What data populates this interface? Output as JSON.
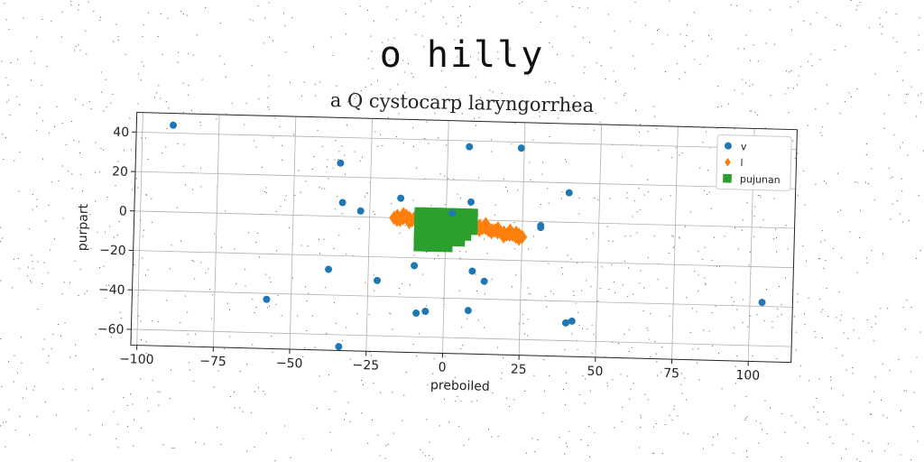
{
  "title": "o hilly",
  "subtitle": "a Q cystocarp laryngorrhea",
  "chart_data": {
    "type": "scatter",
    "xlabel": "preboiled",
    "ylabel": "purpart",
    "xlim": [
      -102,
      114
    ],
    "ylim": [
      -68,
      50
    ],
    "xticks": [
      -100,
      -75,
      -50,
      -25,
      0,
      25,
      50,
      75,
      100
    ],
    "yticks": [
      -60,
      -40,
      -20,
      0,
      20,
      40
    ],
    "xtick_labels": [
      "−100",
      "−75",
      "−50",
      "−25",
      "0",
      "25",
      "50",
      "75",
      "100"
    ],
    "ytick_labels": [
      "−60",
      "−40",
      "−20",
      "0",
      "20",
      "40"
    ],
    "grid": true,
    "legend_position": "top-right",
    "series": [
      {
        "name": "v",
        "color": "#1f77b4",
        "marker": "circle",
        "points": [
          [
            -90,
            44
          ],
          [
            -35,
            27
          ],
          [
            -34,
            7
          ],
          [
            -28,
            3
          ],
          [
            -15,
            10
          ],
          [
            -38,
            -27
          ],
          [
            -58,
            -43
          ],
          [
            -22,
            -32
          ],
          [
            -10,
            -24
          ],
          [
            -9,
            -48
          ],
          [
            -6,
            -47
          ],
          [
            -34,
            -66
          ],
          [
            7,
            37
          ],
          [
            24,
            37
          ],
          [
            8,
            9
          ],
          [
            2,
            3
          ],
          [
            9,
            -26
          ],
          [
            13,
            -31
          ],
          [
            8,
            -46
          ],
          [
            31,
            -2
          ],
          [
            31,
            -3
          ],
          [
            40,
            15
          ],
          [
            40,
            -51
          ],
          [
            42,
            -50
          ],
          [
            104,
            -38
          ]
        ]
      },
      {
        "name": "l",
        "color": "#ff7f0e",
        "marker": "diamond",
        "points": [
          [
            -17,
            0
          ],
          [
            -16,
            1
          ],
          [
            -15,
            -1
          ],
          [
            -14,
            0
          ],
          [
            -13,
            1
          ],
          [
            -12,
            0
          ],
          [
            -11,
            -1
          ],
          [
            -10,
            0
          ],
          [
            -9,
            1
          ],
          [
            -8,
            0
          ],
          [
            -7,
            -1
          ],
          [
            -6,
            0
          ],
          [
            -5,
            0
          ],
          [
            -4,
            -1
          ],
          [
            -3,
            0
          ],
          [
            -2,
            -1
          ],
          [
            -1,
            0
          ],
          [
            0,
            -1
          ],
          [
            1,
            -1
          ],
          [
            2,
            -2
          ],
          [
            3,
            -1
          ],
          [
            4,
            -2
          ],
          [
            5,
            -2
          ],
          [
            6,
            -3
          ],
          [
            7,
            -2
          ],
          [
            8,
            -3
          ],
          [
            9,
            -3
          ],
          [
            10,
            -4
          ],
          [
            11,
            -3
          ],
          [
            12,
            -4
          ],
          [
            13,
            -4
          ],
          [
            14,
            -5
          ],
          [
            15,
            -5
          ],
          [
            16,
            -5
          ],
          [
            17,
            -6
          ],
          [
            18,
            -6
          ],
          [
            19,
            -6
          ],
          [
            20,
            -7
          ],
          [
            21,
            -7
          ],
          [
            22,
            -7
          ],
          [
            23,
            -8
          ],
          [
            24,
            -7
          ],
          [
            25,
            -8
          ],
          [
            -16,
            -1
          ],
          [
            -14,
            2
          ],
          [
            -12,
            -2
          ],
          [
            -10,
            1
          ],
          [
            -8,
            -2
          ],
          [
            -6,
            2
          ],
          [
            -4,
            1
          ],
          [
            -2,
            1
          ],
          [
            1,
            1
          ],
          [
            3,
            0
          ],
          [
            5,
            -1
          ],
          [
            7,
            -4
          ],
          [
            9,
            -1
          ],
          [
            11,
            -5
          ],
          [
            13,
            -2
          ],
          [
            15,
            -6
          ],
          [
            17,
            -4
          ],
          [
            19,
            -8
          ],
          [
            21,
            -5
          ],
          [
            23,
            -6
          ],
          [
            24,
            -9
          ]
        ]
      },
      {
        "name": "pujunan",
        "color": "#2ca02c",
        "marker": "square",
        "points": [
          [
            -8,
            2
          ],
          [
            -6,
            2
          ],
          [
            -4,
            2
          ],
          [
            -2,
            2
          ],
          [
            0,
            2
          ],
          [
            2,
            2
          ],
          [
            4,
            2
          ],
          [
            6,
            2
          ],
          [
            8,
            2
          ],
          [
            -8,
            -1
          ],
          [
            -6,
            -1
          ],
          [
            -4,
            -1
          ],
          [
            -2,
            -1
          ],
          [
            0,
            -1
          ],
          [
            2,
            -1
          ],
          [
            4,
            -1
          ],
          [
            6,
            -1
          ],
          [
            8,
            -1
          ],
          [
            -8,
            -4
          ],
          [
            -6,
            -4
          ],
          [
            -4,
            -4
          ],
          [
            -2,
            -4
          ],
          [
            0,
            -4
          ],
          [
            2,
            -4
          ],
          [
            4,
            -4
          ],
          [
            6,
            -4
          ],
          [
            8,
            -4
          ],
          [
            -8,
            -7
          ],
          [
            -6,
            -7
          ],
          [
            -4,
            -7
          ],
          [
            -2,
            -7
          ],
          [
            0,
            -7
          ],
          [
            2,
            -7
          ],
          [
            4,
            -7
          ],
          [
            6,
            -7
          ],
          [
            -8,
            -10
          ],
          [
            -6,
            -10
          ],
          [
            -4,
            -10
          ],
          [
            -2,
            -10
          ],
          [
            0,
            -10
          ],
          [
            2,
            -10
          ],
          [
            4,
            -10
          ],
          [
            -8,
            -13
          ],
          [
            -6,
            -13
          ],
          [
            -4,
            -13
          ],
          [
            -2,
            -13
          ],
          [
            0,
            -13
          ]
        ]
      }
    ]
  }
}
